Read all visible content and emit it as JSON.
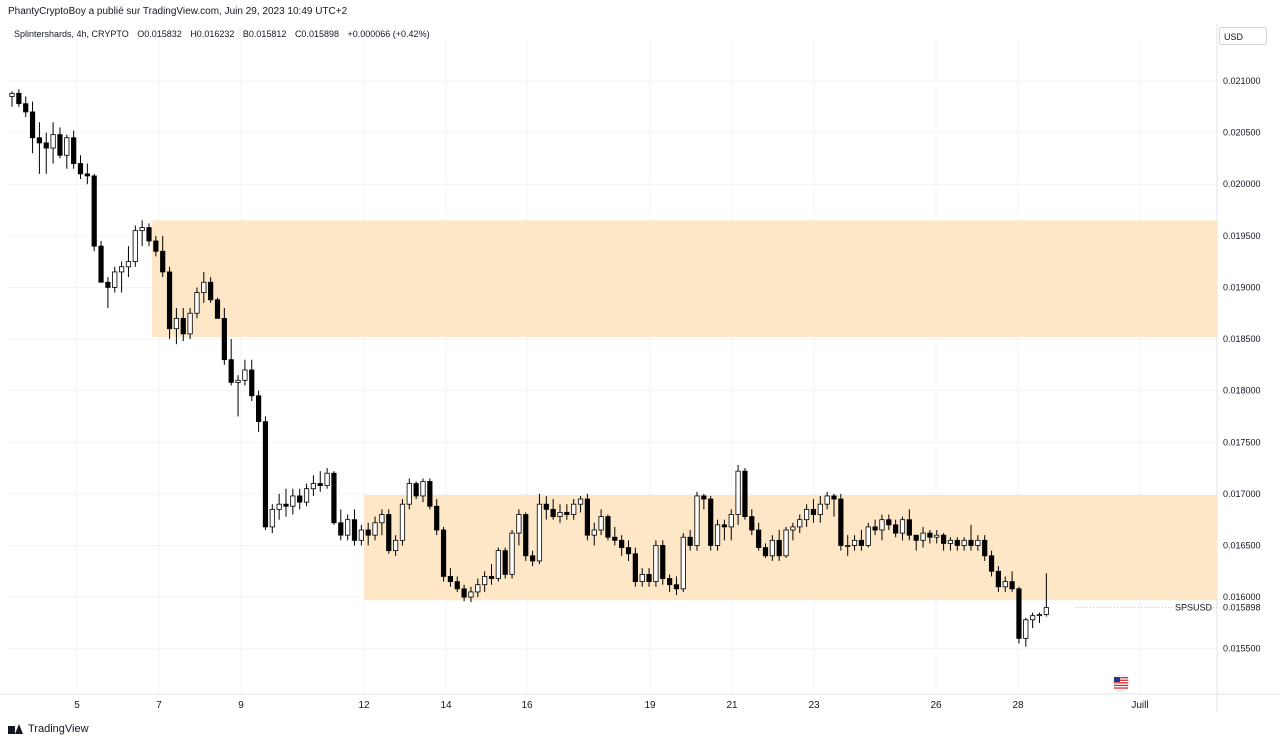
{
  "header": {
    "publisher_line": "PhantyCryptoBoy a publié sur TradingView.com, Juin 29, 2023 10:49 UTC+2"
  },
  "legend": {
    "symbol": "Splintershards, 4h, CRYPTO",
    "open": "O0.015832",
    "high": "H0.016232",
    "low": "B0.015812",
    "close": "C0.015898",
    "change": "+0.000066 (+0.42%)"
  },
  "currency_button": "USD",
  "price_label": {
    "symbol": "SPSUSD",
    "value": "0.015898"
  },
  "footer": {
    "brand": "TradingView"
  },
  "colors": {
    "zone_fill": "#fde7c6",
    "candle_up_fill": "#ffffff",
    "candle_down_fill": "#000000",
    "grid": "#f0f3fa"
  },
  "chart_data": {
    "type": "candlestick",
    "symbol": "SPSUSD",
    "interval": "4h",
    "ylim": [
      0.0151,
      0.0213
    ],
    "y_ticks": [
      "0.021000",
      "0.020500",
      "0.020000",
      "0.019500",
      "0.019000",
      "0.018500",
      "0.018000",
      "0.017500",
      "0.017000",
      "0.016500",
      "0.016000",
      "0.015500"
    ],
    "x_ticks": [
      {
        "label": "5",
        "t": 0
      },
      {
        "label": "7",
        "t": 1
      },
      {
        "label": "9",
        "t": 2
      },
      {
        "label": "12",
        "t": 3
      },
      {
        "label": "14",
        "t": 4
      },
      {
        "label": "16",
        "t": 5
      },
      {
        "label": "19",
        "t": 6
      },
      {
        "label": "21",
        "t": 7
      },
      {
        "label": "23",
        "t": 8
      },
      {
        "label": "26",
        "t": 9
      },
      {
        "label": "28",
        "t": 10
      },
      {
        "label": "Juill",
        "t": 11
      }
    ],
    "zones": [
      {
        "from_bar": 21,
        "y_top": 0.01965,
        "y_bottom": 0.01852
      },
      {
        "from_bar": 52,
        "y_top": 0.01699,
        "y_bottom": 0.01597
      }
    ],
    "last_price": 0.015898,
    "candles": [
      [
        0.02085,
        0.0209,
        0.02075,
        0.02088
      ],
      [
        0.02088,
        0.02092,
        0.02075,
        0.02078
      ],
      [
        0.02078,
        0.02085,
        0.02065,
        0.0207
      ],
      [
        0.0207,
        0.0208,
        0.0203,
        0.02045
      ],
      [
        0.02045,
        0.0206,
        0.0201,
        0.0204
      ],
      [
        0.0204,
        0.0205,
        0.0201,
        0.02035
      ],
      [
        0.02035,
        0.0206,
        0.0202,
        0.02048
      ],
      [
        0.02048,
        0.02055,
        0.02025,
        0.02028
      ],
      [
        0.02028,
        0.02048,
        0.02015,
        0.02045
      ],
      [
        0.02045,
        0.02052,
        0.02015,
        0.0202
      ],
      [
        0.0202,
        0.02028,
        0.02005,
        0.0201
      ],
      [
        0.0201,
        0.0202,
        0.02,
        0.02008
      ],
      [
        0.02008,
        0.0201,
        0.01935,
        0.0194
      ],
      [
        0.0194,
        0.01945,
        0.01905,
        0.01905
      ],
      [
        0.01905,
        0.0191,
        0.0188,
        0.019
      ],
      [
        0.019,
        0.0192,
        0.01895,
        0.01915
      ],
      [
        0.01915,
        0.01925,
        0.01895,
        0.0192
      ],
      [
        0.0192,
        0.0194,
        0.0191,
        0.01925
      ],
      [
        0.01925,
        0.0196,
        0.0192,
        0.01955
      ],
      [
        0.01955,
        0.01965,
        0.0194,
        0.01958
      ],
      [
        0.01958,
        0.01962,
        0.0194,
        0.01945
      ],
      [
        0.01945,
        0.0195,
        0.0193,
        0.01935
      ],
      [
        0.01935,
        0.0195,
        0.0191,
        0.01915
      ],
      [
        0.01915,
        0.0192,
        0.0185,
        0.0186
      ],
      [
        0.0186,
        0.0188,
        0.01845,
        0.0187
      ],
      [
        0.0187,
        0.0188,
        0.01848,
        0.01855
      ],
      [
        0.01855,
        0.0188,
        0.0185,
        0.01875
      ],
      [
        0.01875,
        0.019,
        0.0187,
        0.01895
      ],
      [
        0.01895,
        0.01915,
        0.01885,
        0.01905
      ],
      [
        0.01905,
        0.0191,
        0.01885,
        0.01888
      ],
      [
        0.01888,
        0.0189,
        0.0187,
        0.0187
      ],
      [
        0.0187,
        0.0188,
        0.01825,
        0.0183
      ],
      [
        0.0183,
        0.0185,
        0.01805,
        0.01808
      ],
      [
        0.01808,
        0.01815,
        0.01775,
        0.0181
      ],
      [
        0.0181,
        0.0183,
        0.01805,
        0.0182
      ],
      [
        0.0182,
        0.0183,
        0.0179,
        0.01795
      ],
      [
        0.01795,
        0.018,
        0.0176,
        0.0177
      ],
      [
        0.0177,
        0.01775,
        0.01665,
        0.01668
      ],
      [
        0.01668,
        0.0169,
        0.01662,
        0.01685
      ],
      [
        0.01685,
        0.017,
        0.01675,
        0.0169
      ],
      [
        0.0169,
        0.01705,
        0.01678,
        0.01688
      ],
      [
        0.01688,
        0.01705,
        0.0168,
        0.01698
      ],
      [
        0.01698,
        0.01705,
        0.01685,
        0.01692
      ],
      [
        0.01692,
        0.0171,
        0.01688,
        0.01705
      ],
      [
        0.01705,
        0.01718,
        0.01698,
        0.0171
      ],
      [
        0.0171,
        0.01722,
        0.01702,
        0.01708
      ],
      [
        0.01708,
        0.01725,
        0.01705,
        0.0172
      ],
      [
        0.0172,
        0.01722,
        0.0167,
        0.01672
      ],
      [
        0.01672,
        0.01685,
        0.01655,
        0.0166
      ],
      [
        0.0166,
        0.0168,
        0.01655,
        0.01675
      ],
      [
        0.01675,
        0.01685,
        0.0165,
        0.01655
      ],
      [
        0.01655,
        0.0167,
        0.0165,
        0.01665
      ],
      [
        0.01665,
        0.01672,
        0.0165,
        0.0166
      ],
      [
        0.0166,
        0.01678,
        0.01655,
        0.01672
      ],
      [
        0.01672,
        0.01685,
        0.0166,
        0.0168
      ],
      [
        0.0168,
        0.01685,
        0.01642,
        0.01645
      ],
      [
        0.01645,
        0.0166,
        0.0164,
        0.01655
      ],
      [
        0.01655,
        0.01695,
        0.0165,
        0.0169
      ],
      [
        0.0169,
        0.01715,
        0.01685,
        0.0171
      ],
      [
        0.0171,
        0.01712,
        0.01695,
        0.01698
      ],
      [
        0.01698,
        0.01715,
        0.01692,
        0.01712
      ],
      [
        0.01712,
        0.01715,
        0.01685,
        0.01688
      ],
      [
        0.01688,
        0.01695,
        0.0166,
        0.01665
      ],
      [
        0.01665,
        0.01668,
        0.01615,
        0.0162
      ],
      [
        0.0162,
        0.01628,
        0.0161,
        0.01615
      ],
      [
        0.01615,
        0.0162,
        0.01605,
        0.01608
      ],
      [
        0.01608,
        0.01612,
        0.01596,
        0.016
      ],
      [
        0.016,
        0.0161,
        0.01595,
        0.01605
      ],
      [
        0.01605,
        0.01618,
        0.016,
        0.01612
      ],
      [
        0.01612,
        0.01625,
        0.01605,
        0.0162
      ],
      [
        0.0162,
        0.01632,
        0.01612,
        0.01618
      ],
      [
        0.01618,
        0.01648,
        0.01615,
        0.01645
      ],
      [
        0.01645,
        0.01648,
        0.01618,
        0.01622
      ],
      [
        0.01622,
        0.01665,
        0.01618,
        0.01662
      ],
      [
        0.01662,
        0.01685,
        0.0165,
        0.0168
      ],
      [
        0.0168,
        0.01682,
        0.01635,
        0.0164
      ],
      [
        0.0164,
        0.01645,
        0.0163,
        0.01635
      ],
      [
        0.01635,
        0.017,
        0.01632,
        0.0169
      ],
      [
        0.0169,
        0.01698,
        0.01675,
        0.01685
      ],
      [
        0.01685,
        0.01695,
        0.01675,
        0.01678
      ],
      [
        0.01678,
        0.0169,
        0.01672,
        0.01682
      ],
      [
        0.01682,
        0.0169,
        0.01675,
        0.0168
      ],
      [
        0.0168,
        0.01695,
        0.01675,
        0.0169
      ],
      [
        0.0169,
        0.01698,
        0.01682,
        0.01695
      ],
      [
        0.01695,
        0.017,
        0.01655,
        0.0166
      ],
      [
        0.0166,
        0.01672,
        0.0165,
        0.01665
      ],
      [
        0.01665,
        0.01685,
        0.0166,
        0.01678
      ],
      [
        0.01678,
        0.0168,
        0.01655,
        0.01658
      ],
      [
        0.01658,
        0.01668,
        0.0165,
        0.01655
      ],
      [
        0.01655,
        0.0166,
        0.0164,
        0.01648
      ],
      [
        0.01648,
        0.01655,
        0.01635,
        0.01642
      ],
      [
        0.01642,
        0.01648,
        0.0161,
        0.01615
      ],
      [
        0.01615,
        0.01628,
        0.0161,
        0.01622
      ],
      [
        0.01622,
        0.01628,
        0.0161,
        0.01615
      ],
      [
        0.01615,
        0.01655,
        0.0161,
        0.0165
      ],
      [
        0.0165,
        0.01655,
        0.01612,
        0.01618
      ],
      [
        0.01618,
        0.01622,
        0.01605,
        0.01612
      ],
      [
        0.01612,
        0.0162,
        0.01602,
        0.01608
      ],
      [
        0.01608,
        0.01662,
        0.01605,
        0.01658
      ],
      [
        0.01658,
        0.01665,
        0.01645,
        0.0165
      ],
      [
        0.0165,
        0.01702,
        0.01645,
        0.01698
      ],
      [
        0.01698,
        0.017,
        0.01685,
        0.01695
      ],
      [
        0.01695,
        0.01698,
        0.01645,
        0.0165
      ],
      [
        0.0165,
        0.01675,
        0.01645,
        0.0167
      ],
      [
        0.0167,
        0.01675,
        0.01655,
        0.01668
      ],
      [
        0.01668,
        0.01685,
        0.01655,
        0.0168
      ],
      [
        0.0168,
        0.01728,
        0.0167,
        0.01722
      ],
      [
        0.01722,
        0.01725,
        0.01675,
        0.01678
      ],
      [
        0.01678,
        0.01685,
        0.0166,
        0.01665
      ],
      [
        0.01665,
        0.01672,
        0.01645,
        0.01648
      ],
      [
        0.01648,
        0.01652,
        0.01638,
        0.0164
      ],
      [
        0.0164,
        0.0166,
        0.01635,
        0.01655
      ],
      [
        0.01655,
        0.01665,
        0.01635,
        0.0164
      ],
      [
        0.0164,
        0.01668,
        0.01638,
        0.01665
      ],
      [
        0.01665,
        0.01672,
        0.01655,
        0.01668
      ],
      [
        0.01668,
        0.0168,
        0.01662,
        0.01675
      ],
      [
        0.01675,
        0.0169,
        0.01668,
        0.01685
      ],
      [
        0.01685,
        0.01695,
        0.01672,
        0.0168
      ],
      [
        0.0168,
        0.01698,
        0.01672,
        0.0169
      ],
      [
        0.0169,
        0.01702,
        0.01685,
        0.01698
      ],
      [
        0.01698,
        0.017,
        0.01678,
        0.01695
      ],
      [
        0.01695,
        0.017,
        0.01645,
        0.0165
      ],
      [
        0.0165,
        0.0166,
        0.0164,
        0.0165
      ],
      [
        0.0165,
        0.0166,
        0.01645,
        0.01655
      ],
      [
        0.01655,
        0.01665,
        0.01645,
        0.0165
      ],
      [
        0.0165,
        0.01672,
        0.01648,
        0.01668
      ],
      [
        0.01668,
        0.01675,
        0.0166,
        0.01665
      ],
      [
        0.01665,
        0.0168,
        0.01655,
        0.01675
      ],
      [
        0.01675,
        0.0168,
        0.01665,
        0.0167
      ],
      [
        0.0167,
        0.01675,
        0.01658,
        0.01662
      ],
      [
        0.01662,
        0.01678,
        0.01655,
        0.01675
      ],
      [
        0.01675,
        0.01685,
        0.01655,
        0.0166
      ],
      [
        0.0166,
        0.0166,
        0.01645,
        0.01655
      ],
      [
        0.01655,
        0.01668,
        0.01648,
        0.01662
      ],
      [
        0.01662,
        0.01665,
        0.01652,
        0.01658
      ],
      [
        0.01658,
        0.01665,
        0.01652,
        0.0166
      ],
      [
        0.0166,
        0.01662,
        0.01645,
        0.01652
      ],
      [
        0.01652,
        0.01658,
        0.01645,
        0.01655
      ],
      [
        0.01655,
        0.01658,
        0.01645,
        0.0165
      ],
      [
        0.0165,
        0.01658,
        0.01645,
        0.01655
      ],
      [
        0.01655,
        0.0167,
        0.01645,
        0.0165
      ],
      [
        0.0165,
        0.0166,
        0.01645,
        0.01655
      ],
      [
        0.01655,
        0.0166,
        0.01635,
        0.0164
      ],
      [
        0.0164,
        0.01645,
        0.0162,
        0.01625
      ],
      [
        0.01625,
        0.0163,
        0.01605,
        0.0161
      ],
      [
        0.0161,
        0.0162,
        0.01605,
        0.01615
      ],
      [
        0.01615,
        0.01625,
        0.01605,
        0.01608
      ],
      [
        0.01608,
        0.0161,
        0.01555,
        0.0156
      ],
      [
        0.0156,
        0.0158,
        0.01552,
        0.01578
      ],
      [
        0.01578,
        0.01585,
        0.0157,
        0.01582
      ],
      [
        0.01582,
        0.01585,
        0.01575,
        0.01583
      ],
      [
        0.015832,
        0.016232,
        0.015812,
        0.015898
      ]
    ]
  }
}
